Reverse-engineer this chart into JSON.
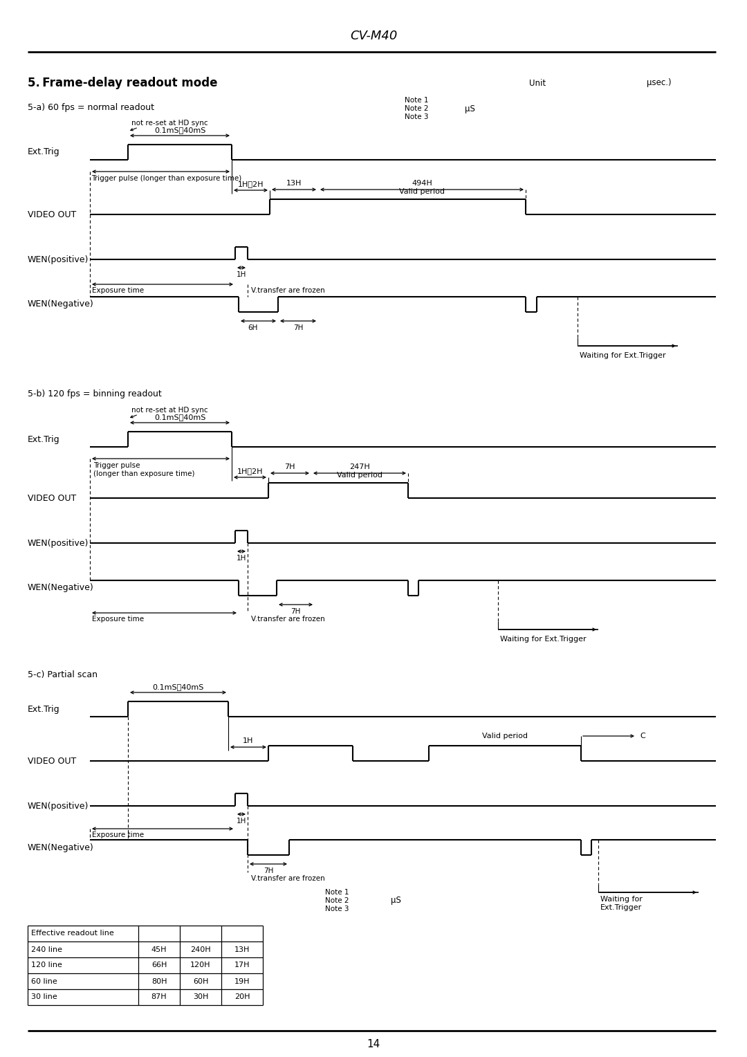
{
  "title": "CV-M40",
  "section_title": "5. Frame-delay readout mode",
  "unit_text": "Unit",
  "unit_value": "μsec.)",
  "bg_color": "#ffffff",
  "line_color": "#000000",
  "page_number": "14",
  "section_a_title": "5-a) 60 fps = normal readout",
  "section_b_title": "5-b) 120 fps = binning readout",
  "section_c_title": "5-c) Partial scan",
  "mu_s": "μS",
  "table_rows": [
    [
      "240 line",
      "45H",
      "240H",
      "13H"
    ],
    [
      "120 line",
      "66H",
      "120H",
      "17H"
    ],
    [
      "60 line",
      "80H",
      "60H",
      "19H"
    ],
    [
      "30 line",
      "87H",
      "30H",
      "20H"
    ]
  ]
}
